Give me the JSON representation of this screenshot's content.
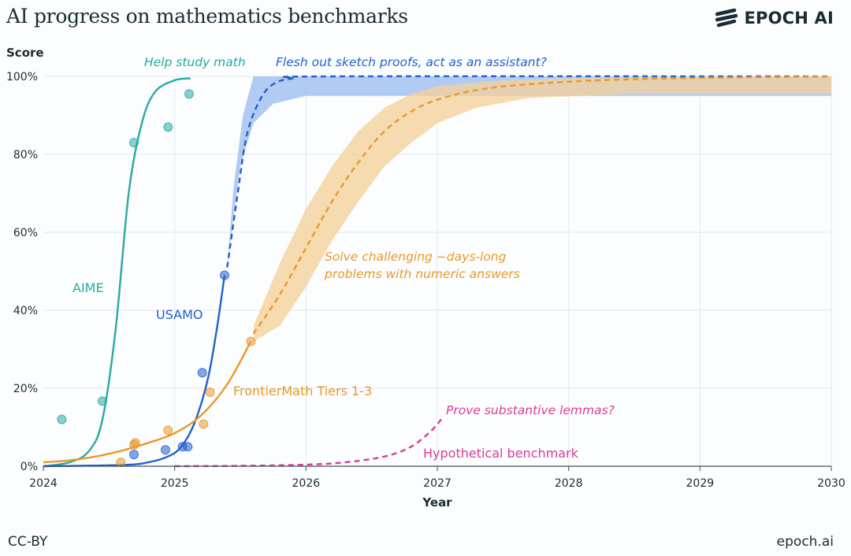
{
  "header": {
    "title": "AI progress on mathematics benchmarks",
    "brand": "EPOCH AI",
    "brand_icon": "epoch-logo-icon"
  },
  "footer": {
    "license": "CC-BY",
    "site": "epoch.ai"
  },
  "colors": {
    "aime": "#2aa8a4",
    "usamo": "#2261c9",
    "usamo_band": "#9dbdf0",
    "frontier": "#e8992a",
    "frontier_band": "#f5cf9a",
    "hypothetical": "#dc3d93",
    "grid": "#e1e9ee",
    "axis": "#3f525c",
    "text": "#1b2b34"
  },
  "chart_data": {
    "type": "line",
    "title": "AI progress on mathematics benchmarks",
    "xlabel": "Year",
    "ylabel": "Score",
    "xlim": [
      2024,
      2030
    ],
    "ylim": [
      0,
      100
    ],
    "x_ticks": [
      "2024",
      "2025",
      "2026",
      "2027",
      "2028",
      "2029",
      "2030"
    ],
    "y_ticks": [
      "0%",
      "20%",
      "40%",
      "60%",
      "80%",
      "100%"
    ],
    "grid": true,
    "series": [
      {
        "name": "AIME",
        "key": "aime",
        "points": [
          [
            2024.14,
            12
          ],
          [
            2024.45,
            16.7
          ],
          [
            2024.69,
            83
          ],
          [
            2024.95,
            87
          ],
          [
            2025.11,
            95.5
          ]
        ],
        "fit_solid": [
          [
            2024.0,
            0
          ],
          [
            2024.2,
            1
          ],
          [
            2024.35,
            4
          ],
          [
            2024.45,
            12
          ],
          [
            2024.55,
            35
          ],
          [
            2024.65,
            70
          ],
          [
            2024.75,
            88
          ],
          [
            2024.85,
            96
          ],
          [
            2025.0,
            99
          ],
          [
            2025.12,
            99.5
          ]
        ],
        "annotation": "Help study math"
      },
      {
        "name": "USAMO",
        "key": "usamo",
        "points": [
          [
            2024.69,
            3
          ],
          [
            2024.93,
            4.2
          ],
          [
            2025.06,
            5
          ],
          [
            2025.1,
            5
          ],
          [
            2025.21,
            24
          ],
          [
            2025.38,
            49
          ]
        ],
        "fit_solid": [
          [
            2024.0,
            0
          ],
          [
            2024.6,
            0.3
          ],
          [
            2024.8,
            1
          ],
          [
            2024.95,
            2.5
          ],
          [
            2025.05,
            5
          ],
          [
            2025.15,
            11
          ],
          [
            2025.25,
            22
          ],
          [
            2025.32,
            35
          ],
          [
            2025.38,
            49
          ]
        ],
        "fit_dashed": [
          [
            2025.4,
            51
          ],
          [
            2025.48,
            70
          ],
          [
            2025.55,
            85
          ],
          [
            2025.65,
            94
          ],
          [
            2025.75,
            98
          ],
          [
            2025.9,
            99.5
          ],
          [
            2026.2,
            100
          ],
          [
            2030,
            100
          ]
        ],
        "band_lower": [
          [
            2025.4,
            51
          ],
          [
            2025.5,
            77
          ],
          [
            2025.6,
            88
          ],
          [
            2025.75,
            93
          ],
          [
            2026.0,
            95
          ],
          [
            2030,
            95
          ]
        ],
        "band_upper": [
          [
            2025.4,
            51
          ],
          [
            2025.45,
            72
          ],
          [
            2025.52,
            90
          ],
          [
            2025.6,
            100
          ],
          [
            2030,
            100
          ]
        ],
        "annotation": "Flesh out sketch proofs, act as an assistant?"
      },
      {
        "name": "FrontierMath Tiers 1-3",
        "key": "frontier",
        "points": [
          [
            2024.59,
            1
          ],
          [
            2024.69,
            5.5
          ],
          [
            2024.7,
            6
          ],
          [
            2024.95,
            9.2
          ],
          [
            2025.22,
            10.8
          ],
          [
            2025.27,
            19
          ],
          [
            2025.58,
            32
          ]
        ],
        "fit_solid": [
          [
            2024.0,
            1
          ],
          [
            2024.2,
            1.5
          ],
          [
            2024.4,
            2.5
          ],
          [
            2024.6,
            4
          ],
          [
            2024.8,
            6
          ],
          [
            2025.0,
            8.5
          ],
          [
            2025.2,
            13
          ],
          [
            2025.4,
            21
          ],
          [
            2025.58,
            32
          ]
        ],
        "fit_dashed": [
          [
            2025.6,
            34
          ],
          [
            2025.8,
            44
          ],
          [
            2026.0,
            56
          ],
          [
            2026.2,
            68
          ],
          [
            2026.4,
            78
          ],
          [
            2026.6,
            86
          ],
          [
            2026.8,
            91
          ],
          [
            2027.0,
            94
          ],
          [
            2027.3,
            96.5
          ],
          [
            2027.7,
            98
          ],
          [
            2028.5,
            99.3
          ],
          [
            2030,
            100
          ]
        ],
        "band_lower": [
          [
            2025.6,
            32
          ],
          [
            2025.8,
            36
          ],
          [
            2026.0,
            46
          ],
          [
            2026.2,
            58
          ],
          [
            2026.4,
            68
          ],
          [
            2026.6,
            77
          ],
          [
            2026.8,
            83
          ],
          [
            2027.0,
            88
          ],
          [
            2027.3,
            92
          ],
          [
            2027.7,
            94.5
          ],
          [
            2028.5,
            95.5
          ],
          [
            2030,
            95.5
          ]
        ],
        "band_upper": [
          [
            2025.6,
            36
          ],
          [
            2025.8,
            52
          ],
          [
            2026.0,
            66
          ],
          [
            2026.2,
            77
          ],
          [
            2026.4,
            86
          ],
          [
            2026.6,
            92
          ],
          [
            2026.8,
            95.5
          ],
          [
            2027.0,
            97.5
          ],
          [
            2027.5,
            99
          ],
          [
            2028.5,
            100
          ],
          [
            2030,
            100
          ]
        ],
        "annotation": "Solve challenging ~days-long problems with numeric answers"
      },
      {
        "name": "Hypothetical benchmark",
        "key": "hypothetical",
        "fit_dashed": [
          [
            2025.0,
            0
          ],
          [
            2025.5,
            0.1
          ],
          [
            2026.0,
            0.4
          ],
          [
            2026.3,
            1
          ],
          [
            2026.6,
            2.5
          ],
          [
            2026.8,
            5
          ],
          [
            2026.95,
            9
          ],
          [
            2027.03,
            12
          ]
        ],
        "annotation": "Prove substantive lemmas?"
      }
    ]
  }
}
